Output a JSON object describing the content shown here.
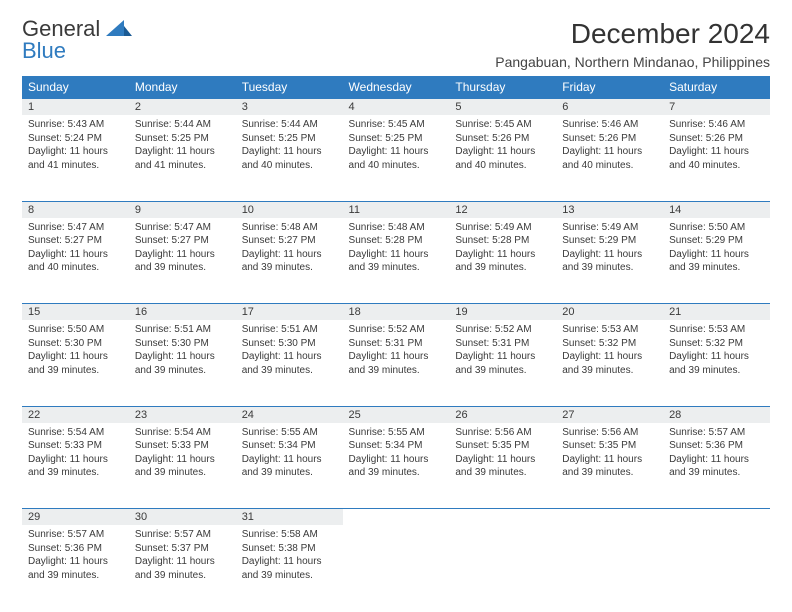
{
  "logo": {
    "line1": "General",
    "line2": "Blue"
  },
  "title": "December 2024",
  "location": "Pangabuan, Northern Mindanao, Philippines",
  "weekdays": [
    "Sunday",
    "Monday",
    "Tuesday",
    "Wednesday",
    "Thursday",
    "Friday",
    "Saturday"
  ],
  "colors": {
    "header_bg": "#2f7bbf",
    "daynum_bg": "#eceeef",
    "border": "#2f7bbf"
  },
  "weeks": [
    [
      {
        "n": "1",
        "sr": "5:43 AM",
        "ss": "5:24 PM",
        "dl": "11 hours and 41 minutes."
      },
      {
        "n": "2",
        "sr": "5:44 AM",
        "ss": "5:25 PM",
        "dl": "11 hours and 41 minutes."
      },
      {
        "n": "3",
        "sr": "5:44 AM",
        "ss": "5:25 PM",
        "dl": "11 hours and 40 minutes."
      },
      {
        "n": "4",
        "sr": "5:45 AM",
        "ss": "5:25 PM",
        "dl": "11 hours and 40 minutes."
      },
      {
        "n": "5",
        "sr": "5:45 AM",
        "ss": "5:26 PM",
        "dl": "11 hours and 40 minutes."
      },
      {
        "n": "6",
        "sr": "5:46 AM",
        "ss": "5:26 PM",
        "dl": "11 hours and 40 minutes."
      },
      {
        "n": "7",
        "sr": "5:46 AM",
        "ss": "5:26 PM",
        "dl": "11 hours and 40 minutes."
      }
    ],
    [
      {
        "n": "8",
        "sr": "5:47 AM",
        "ss": "5:27 PM",
        "dl": "11 hours and 40 minutes."
      },
      {
        "n": "9",
        "sr": "5:47 AM",
        "ss": "5:27 PM",
        "dl": "11 hours and 39 minutes."
      },
      {
        "n": "10",
        "sr": "5:48 AM",
        "ss": "5:27 PM",
        "dl": "11 hours and 39 minutes."
      },
      {
        "n": "11",
        "sr": "5:48 AM",
        "ss": "5:28 PM",
        "dl": "11 hours and 39 minutes."
      },
      {
        "n": "12",
        "sr": "5:49 AM",
        "ss": "5:28 PM",
        "dl": "11 hours and 39 minutes."
      },
      {
        "n": "13",
        "sr": "5:49 AM",
        "ss": "5:29 PM",
        "dl": "11 hours and 39 minutes."
      },
      {
        "n": "14",
        "sr": "5:50 AM",
        "ss": "5:29 PM",
        "dl": "11 hours and 39 minutes."
      }
    ],
    [
      {
        "n": "15",
        "sr": "5:50 AM",
        "ss": "5:30 PM",
        "dl": "11 hours and 39 minutes."
      },
      {
        "n": "16",
        "sr": "5:51 AM",
        "ss": "5:30 PM",
        "dl": "11 hours and 39 minutes."
      },
      {
        "n": "17",
        "sr": "5:51 AM",
        "ss": "5:30 PM",
        "dl": "11 hours and 39 minutes."
      },
      {
        "n": "18",
        "sr": "5:52 AM",
        "ss": "5:31 PM",
        "dl": "11 hours and 39 minutes."
      },
      {
        "n": "19",
        "sr": "5:52 AM",
        "ss": "5:31 PM",
        "dl": "11 hours and 39 minutes."
      },
      {
        "n": "20",
        "sr": "5:53 AM",
        "ss": "5:32 PM",
        "dl": "11 hours and 39 minutes."
      },
      {
        "n": "21",
        "sr": "5:53 AM",
        "ss": "5:32 PM",
        "dl": "11 hours and 39 minutes."
      }
    ],
    [
      {
        "n": "22",
        "sr": "5:54 AM",
        "ss": "5:33 PM",
        "dl": "11 hours and 39 minutes."
      },
      {
        "n": "23",
        "sr": "5:54 AM",
        "ss": "5:33 PM",
        "dl": "11 hours and 39 minutes."
      },
      {
        "n": "24",
        "sr": "5:55 AM",
        "ss": "5:34 PM",
        "dl": "11 hours and 39 minutes."
      },
      {
        "n": "25",
        "sr": "5:55 AM",
        "ss": "5:34 PM",
        "dl": "11 hours and 39 minutes."
      },
      {
        "n": "26",
        "sr": "5:56 AM",
        "ss": "5:35 PM",
        "dl": "11 hours and 39 minutes."
      },
      {
        "n": "27",
        "sr": "5:56 AM",
        "ss": "5:35 PM",
        "dl": "11 hours and 39 minutes."
      },
      {
        "n": "28",
        "sr": "5:57 AM",
        "ss": "5:36 PM",
        "dl": "11 hours and 39 minutes."
      }
    ],
    [
      {
        "n": "29",
        "sr": "5:57 AM",
        "ss": "5:36 PM",
        "dl": "11 hours and 39 minutes."
      },
      {
        "n": "30",
        "sr": "5:57 AM",
        "ss": "5:37 PM",
        "dl": "11 hours and 39 minutes."
      },
      {
        "n": "31",
        "sr": "5:58 AM",
        "ss": "5:38 PM",
        "dl": "11 hours and 39 minutes."
      },
      null,
      null,
      null,
      null
    ]
  ],
  "labels": {
    "sunrise": "Sunrise: ",
    "sunset": "Sunset: ",
    "daylight": "Daylight: "
  }
}
